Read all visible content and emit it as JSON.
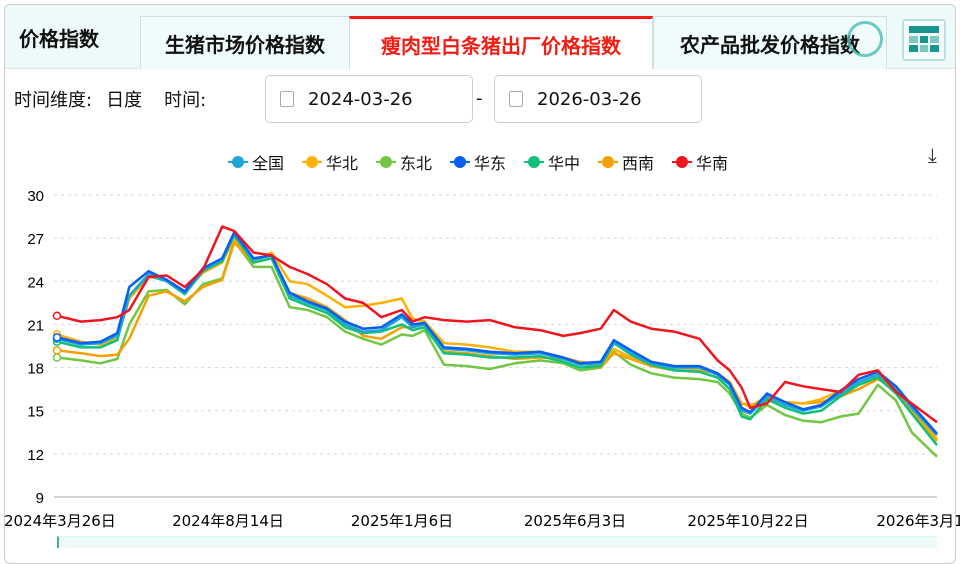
{
  "header": {
    "title": "价格指数",
    "tabs": [
      {
        "label": "生猪市场价格指数"
      },
      {
        "label": "瘦肉型白条猪出厂价格指数",
        "active": true
      },
      {
        "label": "农产品批发价格指数"
      }
    ],
    "table_icon": "table-grid-icon"
  },
  "filters": {
    "dimension_label": "时间维度:",
    "dimension_value": "日度",
    "time_label": "时间:",
    "start_date": "2024-03-26",
    "end_date": "2026-03-26",
    "separator": "-"
  },
  "download_icon": "download-icon",
  "colors": {
    "accent": "#f01e14"
  },
  "chart_data": {
    "type": "line",
    "legend_placement": "top-center",
    "grid": true,
    "ylim": [
      9,
      30
    ],
    "yticks": [
      9,
      12,
      15,
      18,
      21,
      24,
      27,
      30
    ],
    "xticks": [
      "2024年3月26日",
      "2024年8月14日",
      "2025年1月6日",
      "2025年6月3日",
      "2025年10月22日",
      "2026年3月1"
    ],
    "x": [
      "2024-03-26",
      "2024-04-15",
      "2024-05-01",
      "2024-05-15",
      "2024-05-25",
      "2024-06-10",
      "2024-06-25",
      "2024-07-10",
      "2024-07-25",
      "2024-08-10",
      "2024-08-20",
      "2024-09-05",
      "2024-09-20",
      "2024-10-05",
      "2024-10-20",
      "2024-11-05",
      "2024-11-20",
      "2024-12-05",
      "2024-12-20",
      "2025-01-06",
      "2025-01-15",
      "2025-01-25",
      "2025-02-10",
      "2025-03-01",
      "2025-03-20",
      "2025-04-10",
      "2025-05-01",
      "2025-05-20",
      "2025-06-03",
      "2025-06-20",
      "2025-07-01",
      "2025-07-15",
      "2025-08-01",
      "2025-08-20",
      "2025-09-10",
      "2025-09-25",
      "2025-10-05",
      "2025-10-15",
      "2025-10-22",
      "2025-11-05",
      "2025-11-20",
      "2025-12-05",
      "2025-12-20",
      "2026-01-05",
      "2026-01-20",
      "2026-02-05",
      "2026-02-20",
      "2026-03-05",
      "2026-03-26"
    ],
    "series": [
      {
        "name": "全国",
        "color": "#1fa6d8",
        "values": [
          20.0,
          19.6,
          19.7,
          20.2,
          23.0,
          24.5,
          24.0,
          23.2,
          24.8,
          25.5,
          27.3,
          25.5,
          25.8,
          23.0,
          22.5,
          22.0,
          21.0,
          20.5,
          20.6,
          21.5,
          20.8,
          21.0,
          19.3,
          19.2,
          19.0,
          18.9,
          19.0,
          18.6,
          18.2,
          18.3,
          19.8,
          19.0,
          18.3,
          18.0,
          18.0,
          17.5,
          16.8,
          15.0,
          14.8,
          16.0,
          15.4,
          15.0,
          15.3,
          16.2,
          17.0,
          17.5,
          16.5,
          15.2,
          13.3
        ]
      },
      {
        "name": "华北",
        "color": "#ffb000",
        "values": [
          20.3,
          19.8,
          19.6,
          20.0,
          22.8,
          24.3,
          24.1,
          23.3,
          24.6,
          25.3,
          27.0,
          25.3,
          26.0,
          24.0,
          23.8,
          23.0,
          22.2,
          22.3,
          22.5,
          22.8,
          21.4,
          21.2,
          19.7,
          19.6,
          19.4,
          19.1,
          19.1,
          18.7,
          18.4,
          18.2,
          19.3,
          18.7,
          18.4,
          18.1,
          18.0,
          17.6,
          16.9,
          15.5,
          15.3,
          16.0,
          15.6,
          15.5,
          15.8,
          16.4,
          16.8,
          17.3,
          16.6,
          15.3,
          13.0
        ]
      },
      {
        "name": "东北",
        "color": "#73c641",
        "values": [
          18.7,
          18.5,
          18.3,
          18.6,
          21.0,
          23.3,
          23.4,
          22.4,
          23.8,
          24.2,
          26.8,
          25.0,
          25.0,
          22.2,
          22.0,
          21.5,
          20.5,
          20.0,
          19.6,
          20.3,
          20.2,
          20.6,
          18.2,
          18.1,
          17.9,
          18.3,
          18.5,
          18.3,
          17.8,
          18.0,
          19.1,
          18.2,
          17.6,
          17.3,
          17.2,
          17.0,
          16.2,
          14.8,
          14.5,
          15.4,
          14.7,
          14.3,
          14.2,
          14.6,
          14.8,
          16.8,
          15.7,
          13.5,
          11.8
        ]
      },
      {
        "name": "华东",
        "color": "#0a5ef0",
        "values": [
          20.1,
          19.7,
          19.8,
          20.4,
          23.6,
          24.7,
          24.1,
          23.3,
          24.9,
          25.6,
          27.4,
          25.6,
          25.8,
          23.2,
          22.6,
          22.1,
          21.2,
          20.7,
          20.8,
          21.7,
          21.0,
          21.1,
          19.4,
          19.3,
          19.1,
          19.0,
          19.1,
          18.7,
          18.3,
          18.4,
          19.9,
          19.2,
          18.4,
          18.1,
          18.1,
          17.6,
          16.9,
          15.2,
          14.9,
          16.2,
          15.6,
          15.1,
          15.4,
          16.4,
          17.2,
          17.7,
          16.7,
          15.4,
          13.4
        ]
      },
      {
        "name": "华中",
        "color": "#10c07a",
        "values": [
          19.8,
          19.4,
          19.4,
          19.9,
          23.0,
          24.4,
          24.0,
          23.1,
          24.7,
          25.4,
          27.2,
          25.3,
          25.6,
          22.8,
          22.3,
          21.8,
          20.8,
          20.4,
          20.5,
          21.0,
          20.6,
          20.8,
          19.0,
          18.9,
          18.7,
          18.7,
          18.8,
          18.4,
          18.0,
          18.1,
          19.7,
          18.9,
          18.2,
          17.8,
          17.7,
          17.3,
          16.5,
          14.6,
          14.4,
          15.8,
          15.2,
          14.8,
          15.0,
          16.0,
          16.8,
          17.3,
          16.2,
          14.8,
          12.6
        ]
      },
      {
        "name": "西南",
        "color": "#f5a000",
        "values": [
          19.2,
          19.0,
          18.8,
          18.9,
          20.0,
          23.0,
          23.3,
          22.6,
          23.6,
          24.1,
          26.7,
          25.3,
          25.6,
          23.2,
          22.8,
          22.2,
          21.3,
          20.2,
          20.0,
          20.8,
          20.8,
          21.0,
          19.1,
          19.0,
          18.8,
          18.6,
          18.7,
          18.6,
          18.3,
          18.0,
          19.0,
          18.6,
          18.1,
          17.8,
          17.8,
          17.6,
          17.0,
          15.5,
          15.4,
          15.7,
          15.6,
          15.5,
          15.6,
          16.0,
          16.5,
          17.2,
          16.4,
          15.0,
          12.9
        ]
      },
      {
        "name": "华南",
        "color": "#f0141e",
        "values": [
          21.6,
          21.2,
          21.3,
          21.5,
          22.0,
          24.3,
          24.4,
          23.6,
          24.8,
          27.8,
          27.5,
          26.0,
          25.8,
          25.0,
          24.5,
          23.8,
          22.8,
          22.5,
          21.5,
          22.0,
          21.2,
          21.5,
          21.3,
          21.2,
          21.3,
          20.8,
          20.6,
          20.2,
          20.4,
          20.7,
          22.0,
          21.2,
          20.7,
          20.5,
          20.0,
          18.5,
          17.8,
          16.6,
          15.2,
          15.5,
          17.0,
          16.7,
          16.5,
          16.3,
          17.5,
          17.8,
          16.3,
          15.5,
          14.2
        ]
      }
    ]
  }
}
